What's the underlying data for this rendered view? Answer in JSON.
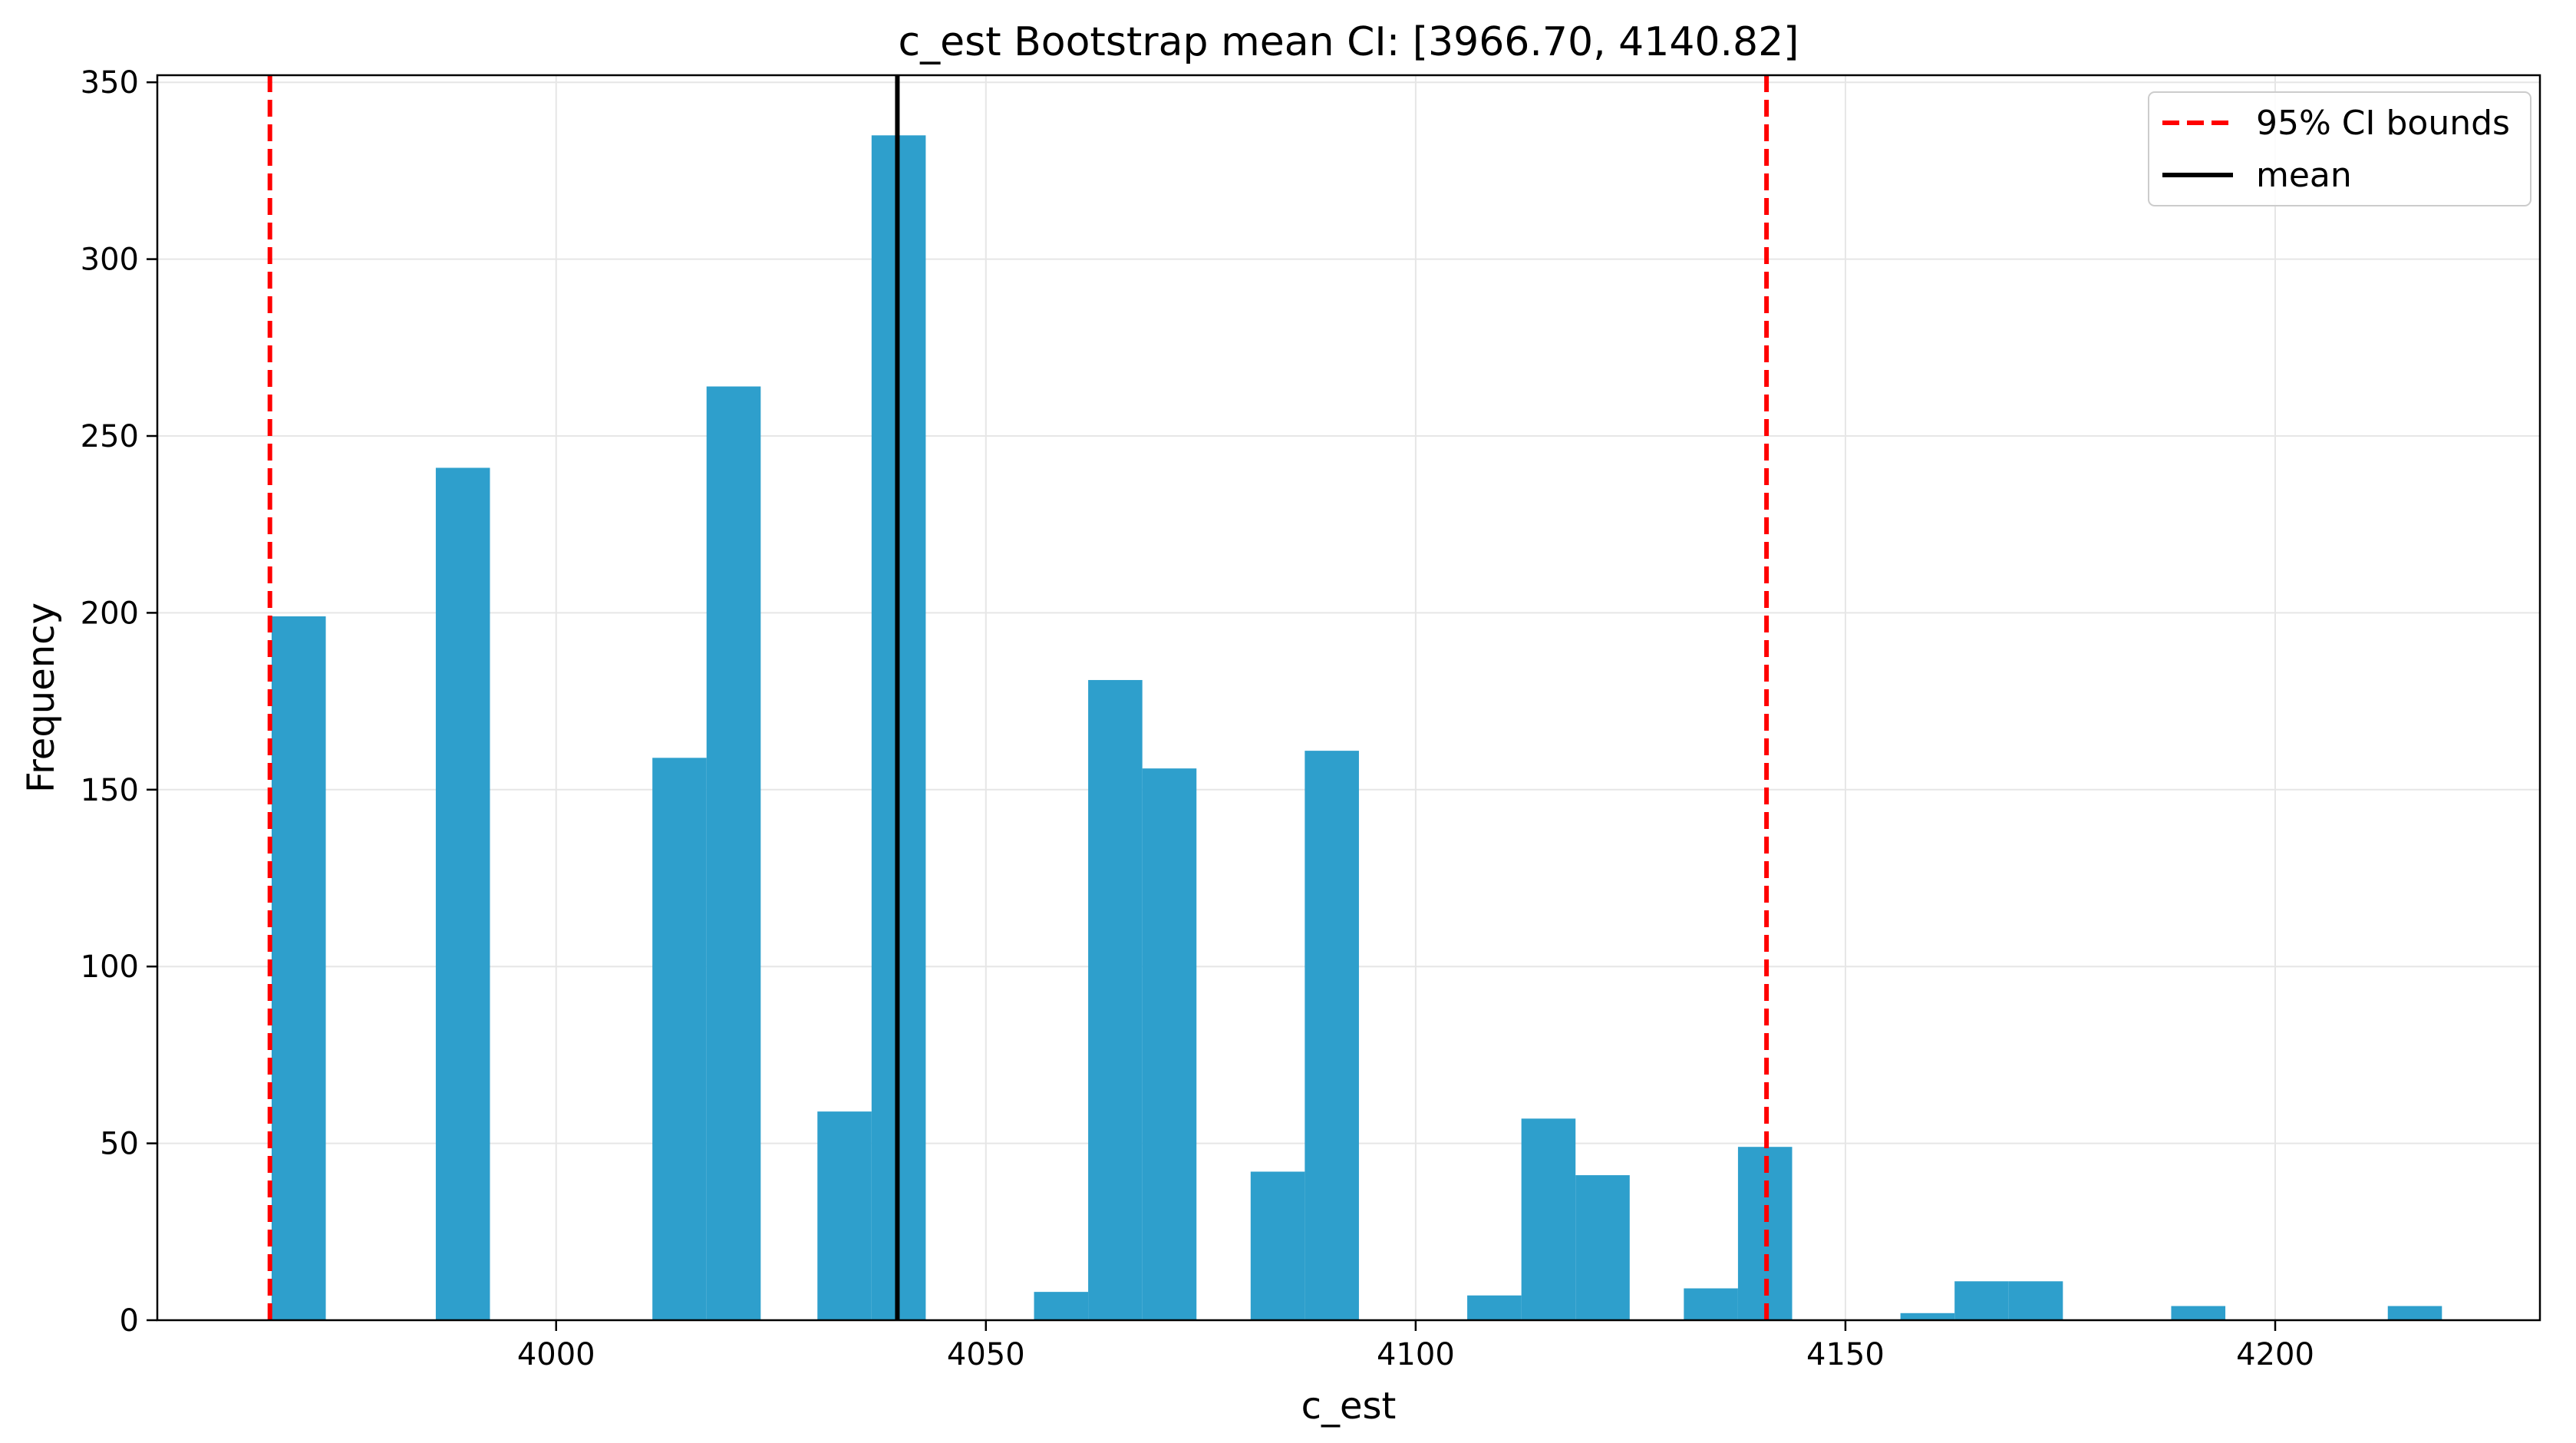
{
  "chart_data": {
    "type": "bar",
    "title": "c_est Bootstrap mean CI: [3966.70, 4140.82]",
    "xlabel": "c_est",
    "ylabel": "Frequency",
    "xlim": [
      3953.6,
      4230.8
    ],
    "ylim": [
      0,
      352
    ],
    "xticks": [
      4000,
      4050,
      4100,
      4150,
      4200
    ],
    "yticks": [
      0,
      50,
      100,
      150,
      200,
      250,
      300,
      350
    ],
    "grid": true,
    "bar_color": "#2e9fcc",
    "bins": [
      {
        "x0": 3966.9,
        "x1": 3973.2,
        "count": 199
      },
      {
        "x0": 3986.0,
        "x1": 3992.3,
        "count": 241
      },
      {
        "x0": 4011.2,
        "x1": 4017.5,
        "count": 159
      },
      {
        "x0": 4017.5,
        "x1": 4023.8,
        "count": 264
      },
      {
        "x0": 4030.4,
        "x1": 4036.7,
        "count": 59
      },
      {
        "x0": 4036.7,
        "x1": 4043.0,
        "count": 335
      },
      {
        "x0": 4055.6,
        "x1": 4061.9,
        "count": 8
      },
      {
        "x0": 4061.9,
        "x1": 4068.2,
        "count": 181
      },
      {
        "x0": 4068.2,
        "x1": 4074.5,
        "count": 156
      },
      {
        "x0": 4080.8,
        "x1": 4087.1,
        "count": 42
      },
      {
        "x0": 4087.1,
        "x1": 4093.4,
        "count": 161
      },
      {
        "x0": 4106.0,
        "x1": 4112.3,
        "count": 7
      },
      {
        "x0": 4112.3,
        "x1": 4118.6,
        "count": 57
      },
      {
        "x0": 4118.6,
        "x1": 4124.9,
        "count": 41
      },
      {
        "x0": 4131.2,
        "x1": 4137.5,
        "count": 9
      },
      {
        "x0": 4137.5,
        "x1": 4143.8,
        "count": 49
      },
      {
        "x0": 4156.4,
        "x1": 4162.7,
        "count": 2
      },
      {
        "x0": 4162.7,
        "x1": 4169.0,
        "count": 11
      },
      {
        "x0": 4169.0,
        "x1": 4175.3,
        "count": 11
      },
      {
        "x0": 4187.9,
        "x1": 4194.2,
        "count": 4
      },
      {
        "x0": 4213.1,
        "x1": 4219.4,
        "count": 4
      }
    ],
    "ci_bounds": [
      3966.7,
      4140.82
    ],
    "mean": 4039.7,
    "legend": {
      "position": "top-right",
      "entries": [
        {
          "label": "95% CI bounds",
          "color": "#ff0000",
          "style": "dashed"
        },
        {
          "label": "mean",
          "color": "#000000",
          "style": "solid"
        }
      ]
    }
  }
}
